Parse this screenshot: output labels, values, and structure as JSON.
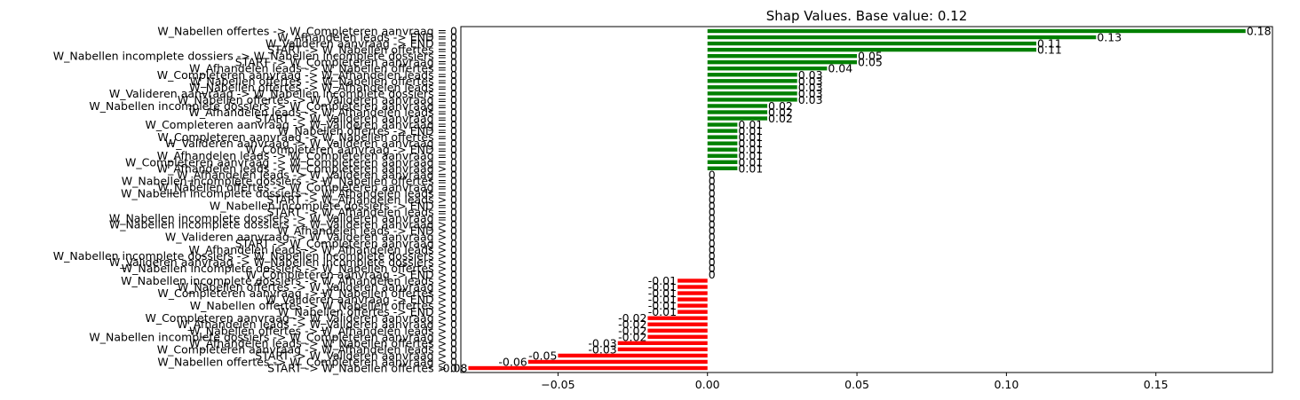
{
  "chart_data": {
    "type": "bar",
    "orientation": "horizontal",
    "title": "Shap Values. Base value: 0.12",
    "xlabel": "",
    "ylabel": "",
    "xlim": [
      -0.0825,
      0.189
    ],
    "xticks": [
      "−0.05",
      "0.00",
      "0.05",
      "0.10",
      "0.15"
    ],
    "xtick_values": [
      -0.05,
      0,
      0.05,
      0.1,
      0.15
    ],
    "grid": false,
    "positive_color": "#008000",
    "negative_color": "#ff0000",
    "categories": [
      "W_Nabellen offertes -> W_Completeren aanvraag = 0",
      "W_Afhandelen leads -> END = 0",
      "W_Valideren aanvraag -> END = 0",
      "START -> W_Nabellen offertes = 0",
      "W_Nabellen incomplete dossiers -> W_Nabellen incomplete dossiers = 0",
      "START -> W_Completeren aanvraag = 0",
      "W_Afhandelen leads -> W_Nabellen offertes = 0",
      "W_Completeren aanvraag -> W_Afhandelen leads = 0",
      "W_Nabellen offertes -> W_Nabellen offertes = 0",
      "W_Nabellen offertes -> W_Afhandelen leads = 0",
      "W_Valideren aanvraag -> W_Nabellen incomplete dossiers = 0",
      "W_Nabellen offertes -> W_Valideren aanvraag = 0",
      "W_Nabellen incomplete dossiers -> W_Completeren aanvraag = 0",
      "W_Afhandelen leads -> W_Afhandelen leads = 0",
      "START -> W_Valideren aanvraag = 0",
      "W_Completeren aanvraag -> W_Valideren aanvraag = 0",
      "W_Nabellen offertes -> END = 0",
      "W_Completeren aanvraag -> W_Nabellen offertes = 0",
      "W_Valideren aanvraag -> W_Valideren aanvraag = 0",
      "W_Completeren aanvraag -> END = 0",
      "W_Afhandelen leads -> W_Completeren aanvraag = 0",
      "W_Completeren aanvraag -> W_Completeren aanvraag = 0",
      "W_Afhandelen leads -> W_Completeren aanvraag > 0",
      "W_Afhandelen leads -> W_Valideren aanvraag = 0",
      "W_Nabellen incomplete dossiers -> W_Nabellen offertes = 0",
      "W_Nabellen offertes -> W_Completeren aanvraag = 0",
      "W_Nabellen incomplete dossiers -> W_Afhandelen leads = 0",
      "START -> W_Afhandelen leads > 0",
      "W_Nabellen incomplete dossiers -> END = 0",
      "START -> W_Afhandelen leads = 0",
      "W_Nabellen incomplete dossiers -> W_Valideren aanvraag = 0",
      "W_Nabellen incomplete dossiers -> W_Valideren aanvraag > 0",
      "W_Afhandelen leads -> END > 0",
      "W_Valideren aanvraag -> W_Valideren aanvraag > 0",
      "START -> W_Completeren aanvraag > 0",
      "W_Afhandelen leads -> W_Afhandelen leads > 0",
      "W_Nabellen incomplete dossiers -> W_Nabellen incomplete dossiers > 0",
      "W_Valideren aanvraag -> W_Nabellen incomplete dossiers > 0",
      "W_Nabellen incomplete dossiers -> W_Nabellen offertes > 0",
      "W_Completeren aanvraag -> END > 0",
      "W_Nabellen incomplete dossiers -> W_Afhandelen leads > 0",
      "W_Nabellen offertes -> W_Valideren aanvraag > 0",
      "W_Completeren aanvraag -> W_Nabellen offertes > 0",
      "W_Valideren aanvraag -> END > 0",
      "W_Nabellen offertes -> W_Nabellen offertes > 0",
      "W_Nabellen offertes -> END > 0",
      "W_Completeren aanvraag -> W_Valideren aanvraag > 0",
      "W_Afhandelen leads -> W_Valideren aanvraag > 0",
      "W_Nabellen offertes -> W_Afhandelen leads > 0",
      "W_Nabellen incomplete dossiers -> W_Completeren aanvraag > 0",
      "W_Afhandelen leads -> W_Nabellen offertes > 0",
      "W_Completeren aanvraag -> W_Afhandelen leads > 0",
      "START -> W_Valideren aanvraag > 0",
      "W_Nabellen offertes -> W_Completeren aanvraag > 0",
      "START -> W_Nabellen offertes > 0"
    ],
    "values": [
      0.18,
      0.13,
      0.11,
      0.11,
      0.05,
      0.05,
      0.04,
      0.03,
      0.03,
      0.03,
      0.03,
      0.03,
      0.02,
      0.02,
      0.02,
      0.01,
      0.01,
      0.01,
      0.01,
      0.01,
      0.01,
      0.01,
      0.01,
      0,
      0,
      0,
      0,
      0,
      0,
      0,
      0,
      0,
      0,
      0,
      0,
      0,
      0,
      0,
      0,
      0,
      -0.01,
      -0.01,
      -0.01,
      -0.01,
      -0.01,
      -0.01,
      -0.02,
      -0.02,
      -0.02,
      -0.02,
      -0.03,
      -0.03,
      -0.05,
      -0.06,
      -0.08
    ],
    "value_labels": [
      "0.18",
      "0.13",
      "0.11",
      "0.11",
      "0.05",
      "0.05",
      "0.04",
      "0.03",
      "0.03",
      "0.03",
      "0.03",
      "0.03",
      "0.02",
      "0.02",
      "0.02",
      "0.01",
      "0.01",
      "0.01",
      "0.01",
      "0.01",
      "0.01",
      "0.01",
      "0.01",
      "0",
      "0",
      "0",
      "0",
      "0",
      "0",
      "0",
      "0",
      "0",
      "0",
      "0",
      "0",
      "0",
      "0",
      "0",
      "0",
      "0",
      "-0.01",
      "-0.01",
      "-0.01",
      "-0.01",
      "-0.01",
      "-0.01",
      "-0.02",
      "-0.02",
      "-0.02",
      "-0.02",
      "-0.03",
      "-0.03",
      "-0.05",
      "-0.06",
      "-0.08"
    ]
  }
}
